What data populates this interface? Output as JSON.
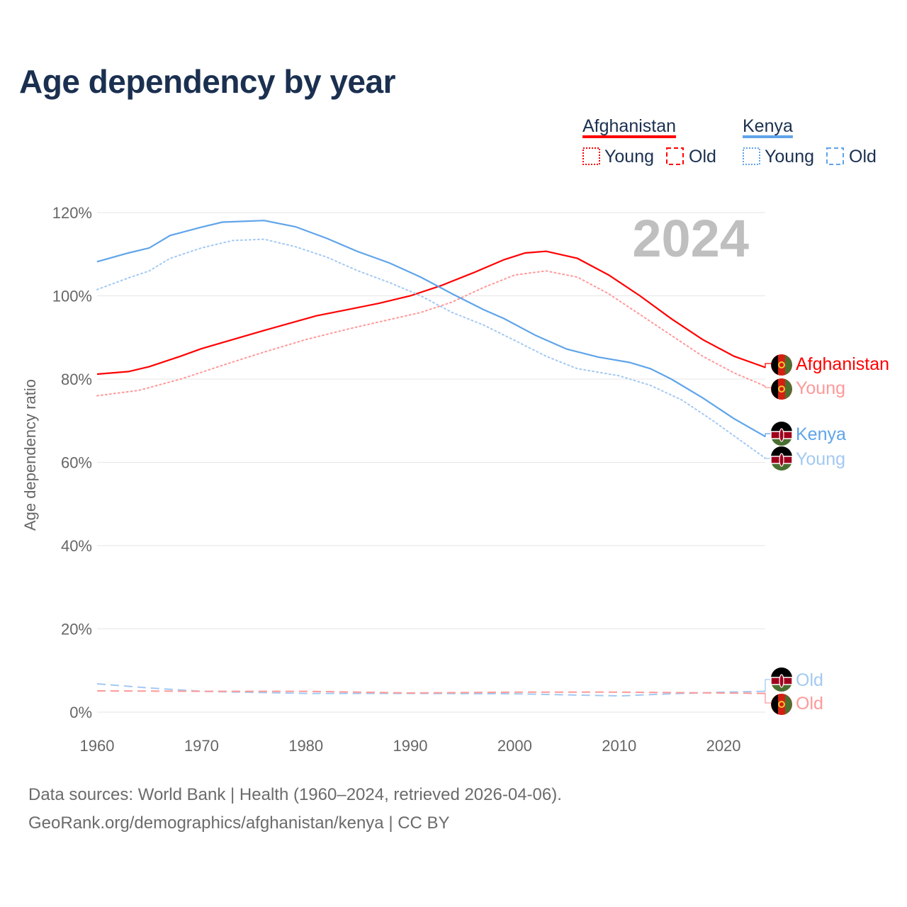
{
  "title": "Age dependency by year",
  "footer": {
    "line1": "Data sources: World Bank | Health (1960–2024, retrieved 2026-04-06).",
    "line2": "GeoRank.org/demographics/afghanistan/kenya | CC BY"
  },
  "chart_data": {
    "type": "line",
    "title": "Age dependency by year",
    "ylabel": "Age dependency ratio",
    "xlabel": "",
    "xlim": [
      1960,
      2024
    ],
    "ylim": [
      0,
      120
    ],
    "xticks": [
      "1960",
      "1970",
      "1980",
      "1990",
      "2000",
      "2010",
      "2020"
    ],
    "yticks": [
      "0%",
      "20%",
      "40%",
      "60%",
      "80%",
      "100%",
      "120%"
    ],
    "year_label": "2024",
    "grid": true,
    "legend": {
      "placement": "top-right",
      "groups": [
        {
          "name": "Afghanistan",
          "color": "#ff0000",
          "young": "Young",
          "old": "Old"
        },
        {
          "name": "Kenya",
          "color": "#5fa4ea",
          "young": "Young",
          "old": "Old"
        }
      ]
    },
    "series": [
      {
        "name": "Afghanistan",
        "end_label": "Afghanistan",
        "flag": "afghanistan-flag",
        "color": "#ff0000",
        "style": "solid",
        "x": [
          1960,
          1963,
          1965,
          1968,
          1970,
          1973,
          1976,
          1979,
          1981,
          1984,
          1987,
          1990,
          1993,
          1996,
          1999,
          2001,
          2003,
          2006,
          2009,
          2012,
          2015,
          2018,
          2021,
          2024
        ],
        "y": [
          81.2,
          81.8,
          83,
          85.5,
          87.3,
          89.5,
          91.7,
          93.8,
          95.2,
          96.7,
          98.2,
          100,
          102.5,
          105.5,
          108.7,
          110.3,
          110.7,
          109,
          105,
          100,
          94.5,
          89.5,
          85.5,
          82.8
        ]
      },
      {
        "name": "Afghanistan Young",
        "end_label": "Young",
        "flag": "afghanistan-flag",
        "color": "#ff9999",
        "style": "dotted",
        "x": [
          1960,
          1964,
          1968,
          1972,
          1976,
          1980,
          1984,
          1988,
          1991,
          1994,
          1997,
          2000,
          2003,
          2006,
          2009,
          2012,
          2015,
          2018,
          2021,
          2024
        ],
        "y": [
          76,
          77.3,
          80,
          83.3,
          86.5,
          89.5,
          92,
          94.3,
          96,
          98.5,
          102,
          105,
          106,
          104.5,
          100.5,
          95.5,
          90.5,
          85.5,
          81.5,
          78.3
        ]
      },
      {
        "name": "Kenya",
        "end_label": "Kenya",
        "flag": "kenya-flag",
        "color": "#5fa4ea",
        "style": "solid",
        "x": [
          1960,
          1963,
          1965,
          1967,
          1970,
          1972,
          1976,
          1979,
          1982,
          1985,
          1988,
          1991,
          1994,
          1997,
          1999,
          2002,
          2005,
          2008,
          2011,
          2013,
          2015,
          2018,
          2021,
          2024
        ],
        "y": [
          108.2,
          110.3,
          111.5,
          114.5,
          116.5,
          117.7,
          118.1,
          116.6,
          113.8,
          110.6,
          107.9,
          104.5,
          100.5,
          96.7,
          94.5,
          90.5,
          87.2,
          85.3,
          84,
          82.5,
          80,
          75.5,
          70.5,
          66.2
        ]
      },
      {
        "name": "Kenya Young",
        "end_label": "Young",
        "flag": "kenya-flag",
        "color": "#a3c9f2",
        "style": "dotted",
        "x": [
          1960,
          1963,
          1965,
          1967,
          1970,
          1973,
          1976,
          1979,
          1982,
          1985,
          1988,
          1991,
          1994,
          1997,
          2000,
          2003,
          2006,
          2010,
          2013,
          2016,
          2019,
          2024
        ],
        "y": [
          101.5,
          104.3,
          106,
          109,
          111.5,
          113.3,
          113.6,
          111.8,
          109.3,
          106,
          103.2,
          100,
          96,
          93,
          89.3,
          85.5,
          82.5,
          80.8,
          78.5,
          75,
          70,
          61
        ]
      },
      {
        "name": "Kenya Old",
        "end_label": "Old",
        "flag": "kenya-flag",
        "color": "#a3c9f2",
        "style": "dashed",
        "x": [
          1960,
          1965,
          1970,
          1980,
          1990,
          2000,
          2010,
          2015,
          2020,
          2024
        ],
        "y": [
          6.8,
          5.8,
          5.0,
          4.5,
          4.5,
          4.4,
          3.9,
          4.4,
          4.8,
          5.0
        ]
      },
      {
        "name": "Afghanistan Old",
        "end_label": "Old",
        "flag": "afghanistan-flag",
        "color": "#ff9999",
        "style": "dashed",
        "x": [
          1960,
          1970,
          1980,
          1990,
          2000,
          2010,
          2020,
          2024
        ],
        "y": [
          5.1,
          5.0,
          5.0,
          4.6,
          4.8,
          4.8,
          4.6,
          4.5
        ]
      }
    ]
  }
}
